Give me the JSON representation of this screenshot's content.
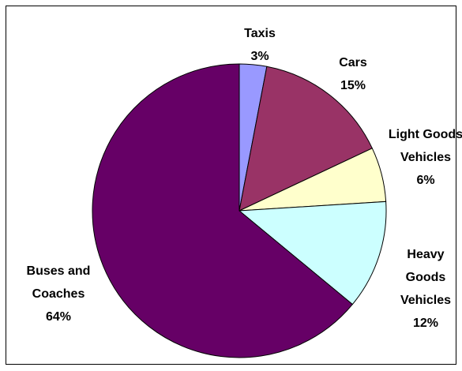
{
  "chart_data": {
    "type": "pie",
    "categories": [
      "Taxis",
      "Cars",
      "Light Goods Vehicles",
      "Heavy Goods Vehicles",
      "Buses and Coaches"
    ],
    "values": [
      3,
      15,
      6,
      12,
      64
    ],
    "value_labels": [
      "3%",
      "15%",
      "6%",
      "12%",
      "64%"
    ],
    "colors": [
      "#9999ff",
      "#993366",
      "#ffffcc",
      "#ccffff",
      "#660066"
    ]
  }
}
